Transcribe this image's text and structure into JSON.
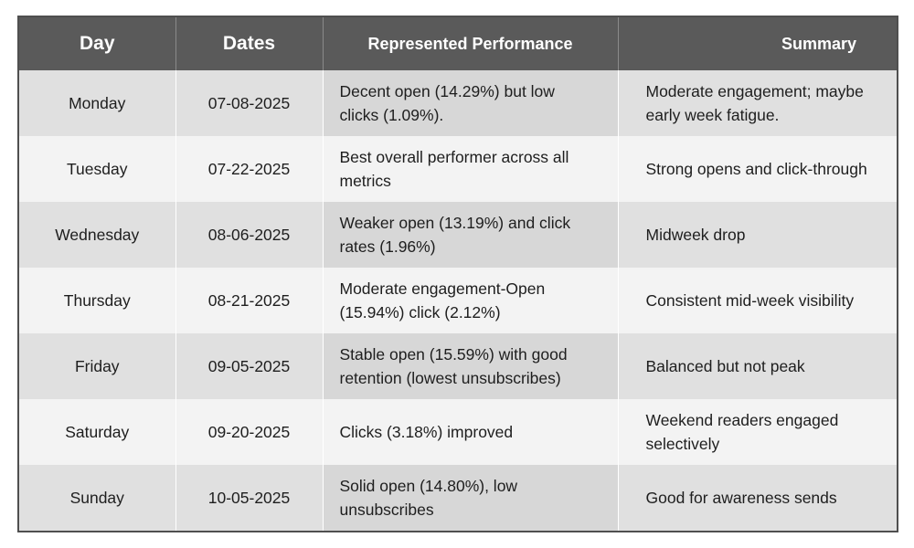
{
  "table": {
    "headers": {
      "day": "Day",
      "dates": "Dates",
      "performance": "Represented Performance",
      "summary": "Summary"
    },
    "rows": [
      {
        "day": "Monday",
        "date": "07-08-2025",
        "performance": "Decent open (14.29%) but low clicks (1.09%).",
        "summary": "Moderate engagement; maybe early week fatigue."
      },
      {
        "day": "Tuesday",
        "date": "07-22-2025",
        "performance": "Best overall performer across all metrics",
        "summary": "Strong opens and click-through"
      },
      {
        "day": "Wednesday",
        "date": "08-06-2025",
        "performance": "Weaker open (13.19%) and click rates (1.96%)",
        "summary": "Midweek drop"
      },
      {
        "day": "Thursday",
        "date": "08-21-2025",
        "performance": "Moderate engagement-Open (15.94%) click (2.12%)",
        "summary": "Consistent mid-week visibility"
      },
      {
        "day": "Friday",
        "date": "09-05-2025",
        "performance": "Stable open (15.59%) with good retention (lowest unsubscribes)",
        "summary": "Balanced but not peak"
      },
      {
        "day": "Saturday",
        "date": "09-20-2025",
        "performance": "Clicks (3.18%) improved",
        "summary": "Weekend readers engaged selectively"
      },
      {
        "day": "Sunday",
        "date": "10-05-2025",
        "performance": "Solid open (14.80%), low unsubscribes",
        "summary": "Good for awareness sends"
      }
    ]
  }
}
